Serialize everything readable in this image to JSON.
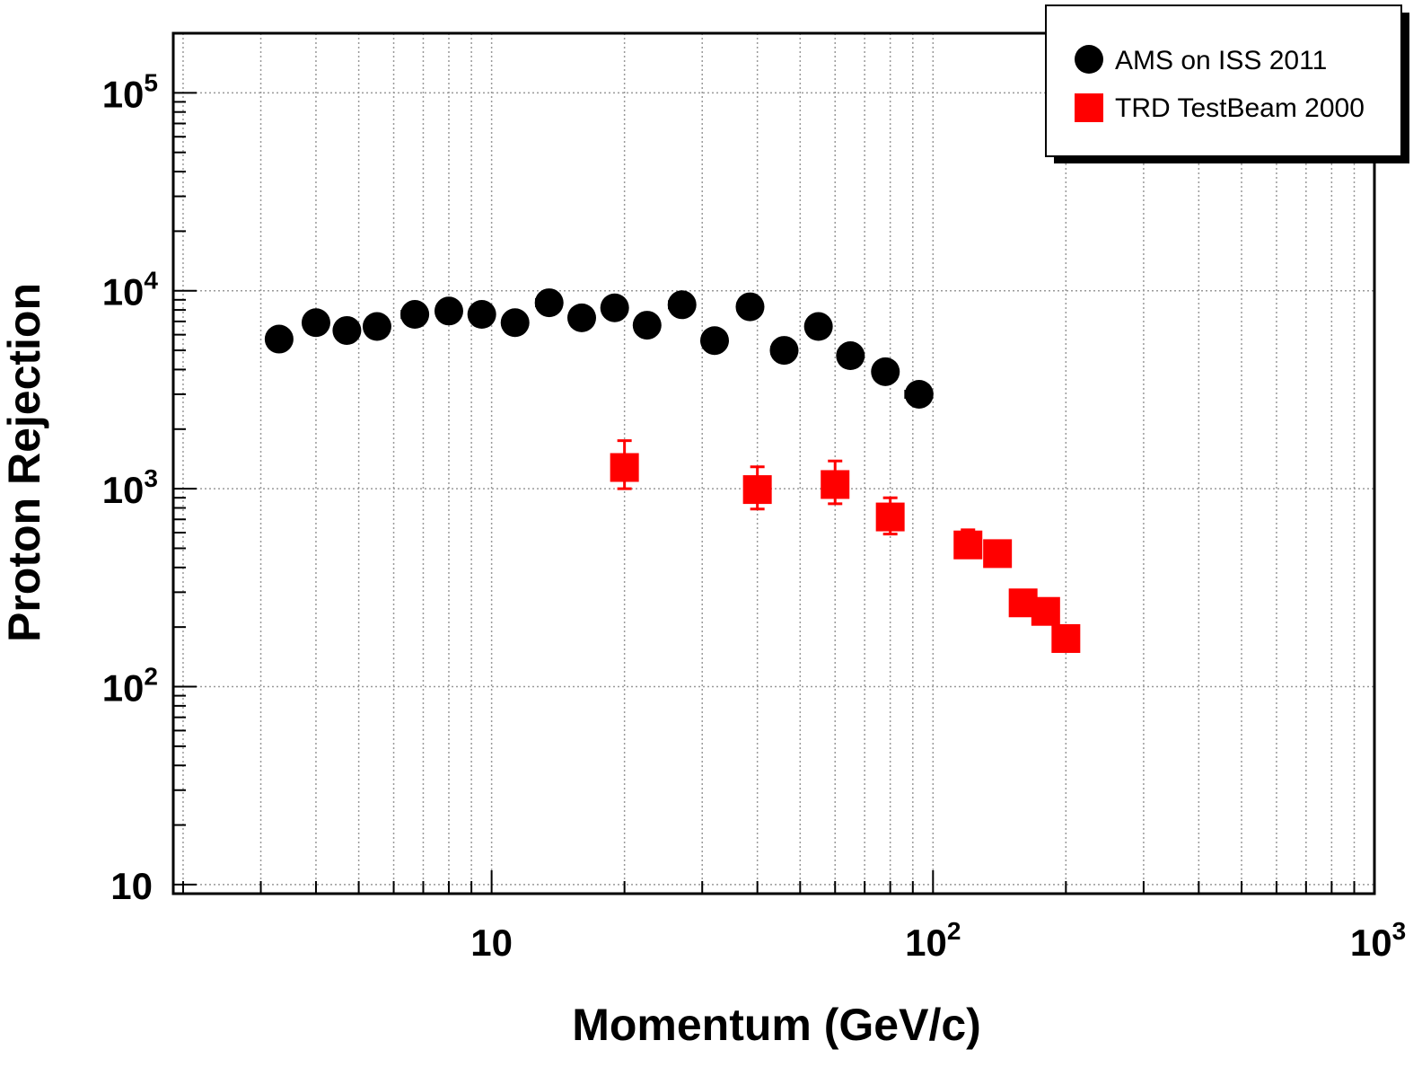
{
  "chart_data": {
    "type": "scatter",
    "title": "",
    "xlabel": "Momentum (GeV/c)",
    "ylabel": "Proton Rejection",
    "xscale": "log",
    "yscale": "log",
    "xlim": [
      1.9,
      1000
    ],
    "ylim": [
      9,
      200000
    ],
    "grid": true,
    "legend_position": "top-right",
    "x_ticks": [
      {
        "value": 10,
        "base": "10",
        "exp": ""
      },
      {
        "value": 100,
        "base": "10",
        "exp": "2"
      },
      {
        "value": 1000,
        "base": "10",
        "exp": "3"
      }
    ],
    "y_ticks": [
      {
        "value": 10,
        "base": "10",
        "exp": ""
      },
      {
        "value": 100,
        "base": "10",
        "exp": "2"
      },
      {
        "value": 1000,
        "base": "10",
        "exp": "3"
      },
      {
        "value": 10000,
        "base": "10",
        "exp": "4"
      },
      {
        "value": 100000,
        "base": "10",
        "exp": "5"
      }
    ],
    "series": [
      {
        "name": "AMS on ISS 2011",
        "marker": "circle",
        "color": "#000000",
        "points": [
          {
            "x": 3.3,
            "y": 5700,
            "xerr": 0.2
          },
          {
            "x": 4.0,
            "y": 6900,
            "xerr": 0.25
          },
          {
            "x": 4.7,
            "y": 6300,
            "xerr": 0.3
          },
          {
            "x": 5.5,
            "y": 6600,
            "xerr": 0.35
          },
          {
            "x": 6.7,
            "y": 7600,
            "xerr": 0.45
          },
          {
            "x": 8.0,
            "y": 7900,
            "xerr": 0.5
          },
          {
            "x": 9.5,
            "y": 7600,
            "xerr": 0.6
          },
          {
            "x": 11.3,
            "y": 6900,
            "xerr": 0.7
          },
          {
            "x": 13.5,
            "y": 8700,
            "xerr": 0.9
          },
          {
            "x": 16.0,
            "y": 7300,
            "xerr": 1.0
          },
          {
            "x": 19.0,
            "y": 8200,
            "xerr": 1.2
          },
          {
            "x": 22.5,
            "y": 6700,
            "xerr": 1.4
          },
          {
            "x": 27.0,
            "y": 8500,
            "xerr": 1.8
          },
          {
            "x": 32.0,
            "y": 5600,
            "xerr": 2.0
          },
          {
            "x": 38.5,
            "y": 8300,
            "xerr": 2.5
          },
          {
            "x": 46.0,
            "y": 5000,
            "xerr": 3.0
          },
          {
            "x": 55.0,
            "y": 6600,
            "xerr": 3.5
          },
          {
            "x": 65.0,
            "y": 4700,
            "xerr": 4.0
          },
          {
            "x": 78.0,
            "y": 3900,
            "xerr": 5.0
          },
          {
            "x": 93.0,
            "y": 3000,
            "xerr": 6.5
          }
        ]
      },
      {
        "name": "TRD TestBeam 2000",
        "marker": "square",
        "color": "#ff0000",
        "points": [
          {
            "x": 20,
            "y": 1280,
            "ylo": 1000,
            "yhi": 1750
          },
          {
            "x": 40,
            "y": 990,
            "ylo": 790,
            "yhi": 1290
          },
          {
            "x": 60,
            "y": 1050,
            "ylo": 840,
            "yhi": 1380
          },
          {
            "x": 80,
            "y": 720,
            "ylo": 590,
            "yhi": 900
          },
          {
            "x": 120,
            "y": 520,
            "ylo": 470,
            "yhi": 620
          },
          {
            "x": 140,
            "y": 470,
            "ylo": 440,
            "yhi": 520
          },
          {
            "x": 160,
            "y": 265,
            "ylo": 250,
            "yhi": 285
          },
          {
            "x": 180,
            "y": 240,
            "ylo": 228,
            "yhi": 255
          },
          {
            "x": 200,
            "y": 175,
            "ylo": 167,
            "yhi": 183
          }
        ]
      }
    ]
  }
}
